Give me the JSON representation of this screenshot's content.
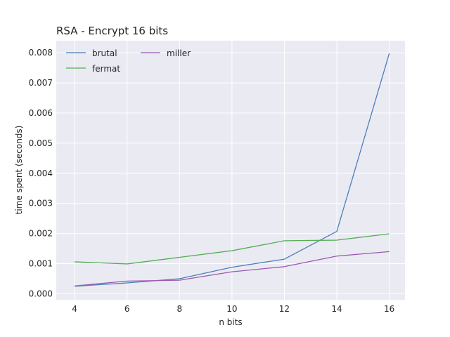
{
  "chart_data": {
    "type": "line",
    "title": "RSA - Encrypt 16 bits",
    "xlabel": "n bits",
    "ylabel": "time spent (seconds)",
    "x": [
      4,
      6,
      8,
      10,
      12,
      14,
      16
    ],
    "xlim": [
      3.3,
      16.6
    ],
    "ylim": [
      -0.0002,
      0.0084
    ],
    "x_ticks": [
      4,
      6,
      8,
      10,
      12,
      14,
      16
    ],
    "y_ticks": [
      "0.000",
      "0.001",
      "0.002",
      "0.003",
      "0.004",
      "0.005",
      "0.006",
      "0.007",
      "0.008"
    ],
    "grid": true,
    "legend_position": "top-left",
    "series": [
      {
        "name": "brutal",
        "color": "#4c7fba",
        "values": [
          0.00025,
          0.00036,
          0.0005,
          0.00088,
          0.00115,
          0.00207,
          0.00798
        ]
      },
      {
        "name": "fermat",
        "color": "#55ad55",
        "values": [
          0.00106,
          0.00099,
          0.00121,
          0.00143,
          0.00176,
          0.00178,
          0.00199
        ]
      },
      {
        "name": "miller",
        "color": "#9b59b0",
        "values": [
          0.00026,
          0.00042,
          0.00045,
          0.00073,
          0.0009,
          0.00125,
          0.0014
        ]
      }
    ]
  }
}
